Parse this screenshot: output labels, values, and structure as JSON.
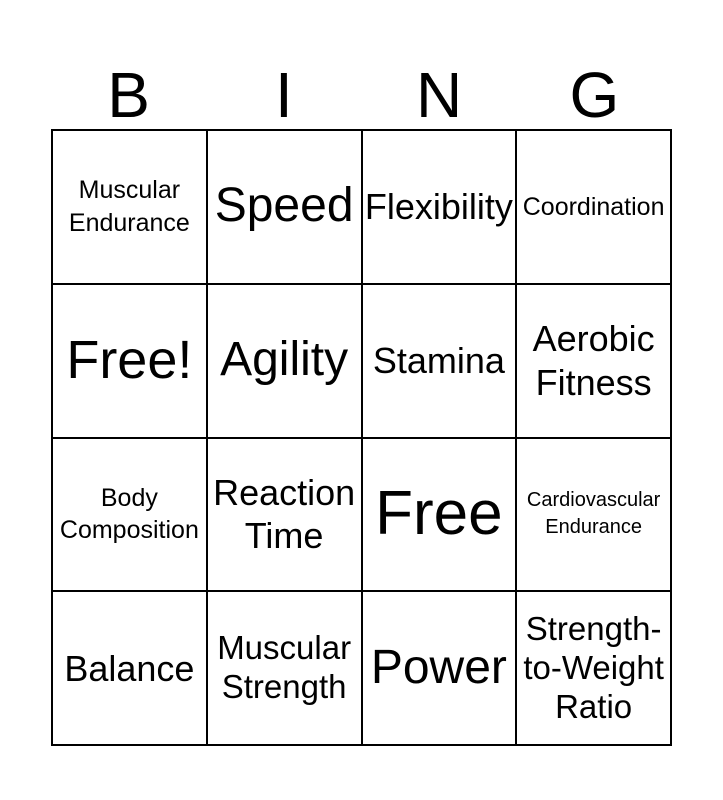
{
  "title": {
    "letters": [
      "B",
      "I",
      "N",
      "G"
    ]
  },
  "card": {
    "rows": [
      [
        {
          "label": "Muscular Endurance",
          "size": "sm",
          "free": false
        },
        {
          "label": "Speed",
          "size": "xl",
          "free": false
        },
        {
          "label": "Flexibility",
          "size": "lg",
          "free": false
        },
        {
          "label": "Coordination",
          "size": "sm",
          "free": false
        }
      ],
      [
        {
          "label": "Free!",
          "size": "xxl",
          "free": true
        },
        {
          "label": "Agility",
          "size": "xl",
          "free": false
        },
        {
          "label": "Stamina",
          "size": "lg",
          "free": false
        },
        {
          "label": "Aerobic Fitness",
          "size": "lg",
          "free": false
        }
      ],
      [
        {
          "label": "Body Composition",
          "size": "sm",
          "free": false
        },
        {
          "label": "Reaction Time",
          "size": "lg",
          "free": false
        },
        {
          "label": "Free",
          "size": "xxxl",
          "free": true
        },
        {
          "label": "Cardiovascular Endurance",
          "size": "xs",
          "free": false
        }
      ],
      [
        {
          "label": "Balance",
          "size": "lg",
          "free": false
        },
        {
          "label": "Muscular Strength",
          "size": "md",
          "free": false
        },
        {
          "label": "Power",
          "size": "xl",
          "free": false
        },
        {
          "label": "Strength-to-Weight Ratio",
          "size": "md",
          "free": false
        }
      ]
    ]
  },
  "colors": {
    "text": "#000000",
    "border": "#000000",
    "background": "#ffffff"
  }
}
